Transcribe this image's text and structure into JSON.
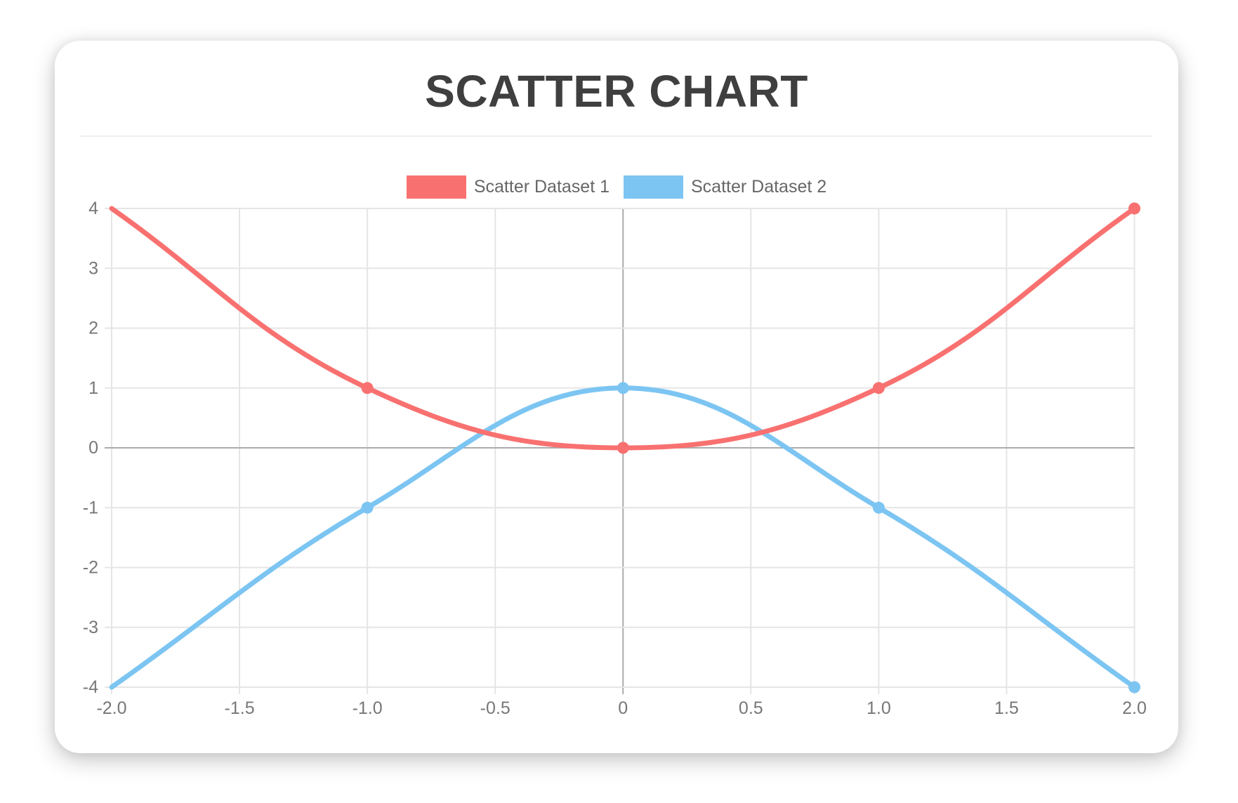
{
  "title": "SCATTER CHART",
  "chart_data": {
    "type": "line",
    "title": "SCATTER CHART",
    "x": [
      -2,
      -1,
      0,
      1,
      2
    ],
    "series": [
      {
        "name": "Scatter Dataset 1",
        "color": "#f87170",
        "values": [
          4,
          1,
          0,
          1,
          4
        ]
      },
      {
        "name": "Scatter Dataset 2",
        "color": "#7cc5f2",
        "values": [
          -4,
          -1,
          1,
          -1,
          -4
        ]
      }
    ],
    "xlim": [
      -2,
      2
    ],
    "ylim": [
      -4,
      4
    ],
    "x_ticks": [
      {
        "value": -2,
        "label": "-2.0"
      },
      {
        "value": -1.5,
        "label": "-1.5"
      },
      {
        "value": -1,
        "label": "-1.0"
      },
      {
        "value": -0.5,
        "label": "-0.5"
      },
      {
        "value": 0,
        "label": "0"
      },
      {
        "value": 0.5,
        "label": "0.5"
      },
      {
        "value": 1,
        "label": "1.0"
      },
      {
        "value": 1.5,
        "label": "1.5"
      },
      {
        "value": 2,
        "label": "2.0"
      }
    ],
    "y_ticks": [
      {
        "value": 4,
        "label": "4"
      },
      {
        "value": 3,
        "label": "3"
      },
      {
        "value": 2,
        "label": "2"
      },
      {
        "value": 1,
        "label": "1"
      },
      {
        "value": 0,
        "label": "0"
      },
      {
        "value": -1,
        "label": "-1"
      },
      {
        "value": -2,
        "label": "-2"
      },
      {
        "value": -3,
        "label": "-3"
      },
      {
        "value": -4,
        "label": "-4"
      }
    ],
    "grid": true,
    "legend_position": "top",
    "tension": 0.4,
    "line_width": 7,
    "point_radius": 8.5,
    "skip_first_point_marker": true
  },
  "colors": {
    "series1": "#f87170",
    "series2": "#7cc5f2",
    "grid_line": "#e5e5e5",
    "zero_line": "#ababab",
    "tick_text": "#777777",
    "legend_text": "#666666",
    "title_text": "#3f3f3f",
    "divider": "#efefef",
    "card_background": "#ffffff"
  }
}
